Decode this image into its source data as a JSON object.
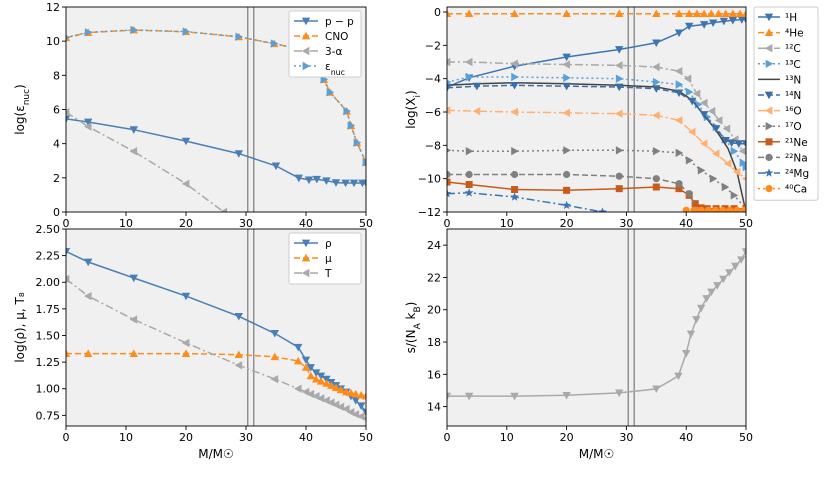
{
  "figure": {
    "x_unit_label": "M/M☉",
    "marker_colors": {
      "blue": "#4a7fb5",
      "orange": "#ff8c1a",
      "gray": "#a9a9a9",
      "lightblue": "#5aa0d8",
      "darkgray": "#444444",
      "navy": "#3a6ea5",
      "peach": "#ffb070",
      "dotgray": "#808080",
      "rust": "#c85a1a",
      "steel": "#3d74b4"
    }
  },
  "chart_data": [
    {
      "id": "p1",
      "type": "line",
      "ylabel": "log(ε_nuc)",
      "xlim": [
        0,
        50
      ],
      "ylim": [
        0,
        12
      ],
      "xticks": [
        0,
        10,
        20,
        30,
        40,
        50
      ],
      "yticks": [
        0,
        2,
        4,
        6,
        8,
        10,
        12
      ],
      "vlines": [
        30.3,
        31.3
      ],
      "grid": false,
      "legend_position": "top-right",
      "series": [
        {
          "name": "p − p",
          "color": "#4a7fb5",
          "dash": "",
          "marker": "tri-down",
          "x": [
            0,
            3.7,
            11.3,
            20,
            28.8,
            35,
            38.8,
            40.5,
            41.8,
            43.4,
            45,
            46.6,
            48,
            49.4,
            50
          ],
          "y": [
            5.45,
            5.27,
            4.82,
            4.15,
            3.42,
            2.7,
            1.99,
            1.88,
            1.92,
            1.83,
            1.72,
            1.7,
            1.7,
            1.7,
            1.7
          ]
        },
        {
          "name": "CNO",
          "color": "#ff8c1a",
          "dash": "6,3",
          "marker": "tri-up",
          "x": [
            0,
            3.7,
            11.3,
            20,
            28.8,
            34.7,
            38.8,
            43,
            44,
            46.8,
            47.5,
            48.5,
            50
          ],
          "y": [
            10.2,
            10.5,
            10.65,
            10.55,
            10.25,
            9.85,
            9.55,
            7.75,
            7.0,
            5.9,
            5.05,
            4.05,
            2.9
          ]
        },
        {
          "name": "3-α",
          "color": "#a9a9a9",
          "dash": "8,3,2,3",
          "marker": "tri-left",
          "x": [
            0,
            3.7,
            11.3,
            20,
            26.3
          ],
          "y": [
            5.85,
            5.0,
            3.55,
            1.65,
            0
          ]
        },
        {
          "name": "ε_nuc",
          "color": "#5aa0d8",
          "dash": "2,3",
          "marker": "tri-right",
          "x": [
            0,
            3.7,
            11.3,
            20,
            28.8,
            34.7,
            38.8,
            43,
            44,
            46.8,
            47.5,
            48.5,
            50
          ],
          "y": [
            10.22,
            10.52,
            10.66,
            10.56,
            10.26,
            9.86,
            9.56,
            7.76,
            7.01,
            5.91,
            5.06,
            4.06,
            2.91
          ]
        }
      ]
    },
    {
      "id": "p2",
      "type": "line",
      "ylabel": "log(X_i)",
      "xlim": [
        0,
        50
      ],
      "ylim": [
        -12,
        0.3
      ],
      "xticks": [
        0,
        10,
        20,
        30,
        40,
        50
      ],
      "yticks": [
        -12,
        -10,
        -8,
        -6,
        -4,
        -2,
        0
      ],
      "vlines": [
        30.3,
        31.3
      ],
      "grid": false,
      "legend_position": "outside-right",
      "series": [
        {
          "name": "¹H",
          "color": "#3d74b4",
          "dash": "",
          "marker": "tri-down",
          "x": [
            0,
            3.7,
            11.3,
            20,
            28.8,
            35,
            38.8,
            40.5,
            43,
            44.5,
            46.3,
            47.8,
            49.3,
            50
          ],
          "y": [
            -4.5,
            -3.95,
            -3.25,
            -2.7,
            -2.25,
            -1.85,
            -1.25,
            -0.85,
            -0.75,
            -0.65,
            -0.55,
            -0.5,
            -0.45,
            -0.45
          ]
        },
        {
          "name": "⁴He",
          "color": "#ff8c1a",
          "dash": "6,3",
          "marker": "tri-up",
          "x": [
            0,
            3.7,
            11.3,
            20,
            28.8,
            35,
            38.8,
            40.5,
            41.8,
            43,
            44.2,
            45.4,
            46.6,
            47.8,
            49,
            50
          ],
          "y": [
            -0.1,
            -0.1,
            -0.1,
            -0.1,
            -0.1,
            -0.1,
            -0.1,
            -0.1,
            -0.1,
            -0.1,
            -0.1,
            -0.1,
            -0.1,
            -0.1,
            -0.1,
            -0.1
          ]
        },
        {
          "name": "¹²C",
          "color": "#a9a9a9",
          "dash": "8,3,2,3",
          "marker": "tri-left",
          "x": [
            0,
            3.7,
            11.3,
            20,
            28.8,
            35,
            38.8,
            40.3,
            41.8,
            43,
            44.3,
            45.5,
            46.8,
            48.2,
            49.5,
            50
          ],
          "y": [
            -3.0,
            -3.0,
            -3.1,
            -3.15,
            -3.2,
            -3.3,
            -3.55,
            -4.0,
            -4.9,
            -5.45,
            -5.95,
            -6.5,
            -7.0,
            -7.65,
            -8.35,
            -8.4
          ]
        },
        {
          "name": "¹³C",
          "color": "#5aa0d8",
          "dash": "2,3",
          "marker": "tri-right",
          "x": [
            0,
            3.7,
            11.3,
            20,
            28.8,
            35,
            38.8,
            40.5,
            42,
            43.5,
            45,
            46.5,
            48,
            49.5,
            50
          ],
          "y": [
            -4.2,
            -3.9,
            -3.9,
            -3.95,
            -4.0,
            -4.2,
            -4.35,
            -4.8,
            -5.55,
            -6.3,
            -6.9,
            -7.65,
            -8.35,
            -9.05,
            -9.3
          ]
        },
        {
          "name": "¹³N",
          "color": "#444444",
          "dash": "",
          "marker": "none",
          "x": [
            0,
            5,
            11.3,
            20,
            28.8,
            35,
            38.8,
            41,
            43,
            45,
            47,
            48.5,
            50
          ],
          "y": [
            -4.4,
            -4.3,
            -4.25,
            -4.3,
            -4.4,
            -4.5,
            -4.75,
            -5.3,
            -6.2,
            -7.1,
            -8.2,
            -9.6,
            -12.0
          ]
        },
        {
          "name": "¹⁴N",
          "color": "#3a6ea5",
          "dash": "6,3",
          "marker": "tri-down",
          "x": [
            0,
            5,
            11.3,
            20,
            28.8,
            35,
            38.8,
            41,
            43,
            45,
            46.6,
            47.6,
            48.8,
            50
          ],
          "y": [
            -4.55,
            -4.45,
            -4.4,
            -4.45,
            -4.5,
            -4.6,
            -4.85,
            -5.35,
            -6.15,
            -7.0,
            -7.7,
            -7.85,
            -7.9,
            -7.9
          ]
        },
        {
          "name": "¹⁶O",
          "color": "#ffb070",
          "dash": "8,3,2,3",
          "marker": "tri-left",
          "x": [
            0,
            5,
            11.3,
            20,
            28.8,
            35,
            38.8,
            41,
            43,
            45,
            47,
            48.5,
            50
          ],
          "y": [
            -5.9,
            -5.95,
            -6.0,
            -6.05,
            -6.1,
            -6.2,
            -6.5,
            -7.2,
            -7.9,
            -8.5,
            -9.1,
            -9.6,
            -10.0
          ]
        },
        {
          "name": "¹⁷O",
          "color": "#808080",
          "dash": "2,3",
          "marker": "tri-right",
          "x": [
            0,
            3.7,
            11.3,
            20,
            28.8,
            35,
            38.8,
            40.5,
            42.5,
            44.5,
            46.5,
            48,
            50
          ],
          "y": [
            -8.3,
            -8.35,
            -8.35,
            -8.3,
            -8.3,
            -8.35,
            -8.45,
            -8.9,
            -9.5,
            -10.0,
            -10.5,
            -11.0,
            -11.8
          ]
        },
        {
          "name": "²¹Ne",
          "color": "#c85a1a",
          "dash": "",
          "marker": "square",
          "x": [
            0,
            3.7,
            11.3,
            20,
            28.8,
            35,
            38.8,
            40.5,
            41.5,
            42.5,
            43.5,
            45,
            46.5,
            48,
            50
          ],
          "y": [
            -10.2,
            -10.35,
            -10.65,
            -10.7,
            -10.6,
            -10.5,
            -10.6,
            -11.0,
            -11.5,
            -11.75,
            -11.8,
            -11.8,
            -11.8,
            -11.8,
            -11.8
          ]
        },
        {
          "name": "²²Na",
          "color": "#808080",
          "dash": "6,3",
          "marker": "circle",
          "x": [
            0,
            3.7,
            11.3,
            20,
            28.8,
            35,
            38.8,
            40.5,
            42
          ],
          "y": [
            -9.75,
            -9.75,
            -9.75,
            -9.75,
            -9.85,
            -10.0,
            -10.3,
            -10.9,
            -12.0
          ]
        },
        {
          "name": "²⁴Mg",
          "color": "#3d74b4",
          "dash": "8,3,2,3",
          "marker": "star",
          "x": [
            0,
            3.7,
            11.3,
            20,
            26
          ],
          "y": [
            -10.9,
            -10.85,
            -11.1,
            -11.6,
            -12.0
          ]
        },
        {
          "name": "⁴⁰Ca",
          "color": "#ff8c1a",
          "dash": "2,3",
          "marker": "circle",
          "x": [
            40,
            41.3,
            42.5,
            43.7,
            44.9,
            46.1,
            47.3,
            48.5,
            49.7
          ],
          "y": [
            -11.9,
            -11.9,
            -11.9,
            -11.9,
            -11.9,
            -11.9,
            -11.9,
            -11.9,
            -11.9
          ]
        }
      ]
    },
    {
      "id": "p3",
      "type": "line",
      "ylabel": "log(ρ), μ, T₈",
      "xlabel": "M/M☉",
      "xlim": [
        0,
        50
      ],
      "ylim": [
        0.65,
        2.5
      ],
      "xticks": [
        0,
        10,
        20,
        30,
        40,
        50
      ],
      "yticks": [
        0.75,
        1.0,
        1.25,
        1.5,
        1.75,
        2.0,
        2.25,
        2.5
      ],
      "ytick_labels": [
        "0.75",
        "1.00",
        "1.25",
        "1.50",
        "1.75",
        "2.00",
        "2.25",
        "2.50"
      ],
      "vlines": [
        30.3,
        31.3
      ],
      "grid": false,
      "legend_position": "top-right",
      "series": [
        {
          "name": "ρ",
          "color": "#4a7fb5",
          "dash": "",
          "marker": "tri-down",
          "x": [
            0,
            3.7,
            11.3,
            20,
            28.8,
            34.8,
            38.7,
            40,
            40.8,
            41.7,
            42.5,
            43.4,
            44.2,
            45,
            45.8,
            46.7,
            47.5,
            48.3,
            49.2,
            50
          ],
          "y": [
            2.29,
            2.19,
            2.04,
            1.87,
            1.68,
            1.52,
            1.39,
            1.27,
            1.2,
            1.15,
            1.12,
            1.09,
            1.06,
            1.03,
            1.0,
            0.97,
            0.93,
            0.89,
            0.84,
            0.78
          ]
        },
        {
          "name": "μ",
          "color": "#ff8c1a",
          "dash": "6,3",
          "marker": "tri-up",
          "x": [
            0,
            3.7,
            11.3,
            20,
            28.8,
            34.8,
            38.7,
            40,
            40.8,
            41.7,
            42.5,
            43.4,
            44.2,
            45,
            45.8,
            46.7,
            47.5,
            48.3,
            49.2,
            50
          ],
          "y": [
            1.33,
            1.33,
            1.33,
            1.33,
            1.32,
            1.3,
            1.26,
            1.2,
            1.12,
            1.09,
            1.07,
            1.05,
            1.03,
            1.01,
            0.99,
            0.97,
            0.96,
            0.95,
            0.94,
            0.93
          ]
        },
        {
          "name": "T",
          "color": "#a9a9a9",
          "dash": "8,3,2,3",
          "marker": "tri-left",
          "x": [
            0,
            3.7,
            11.3,
            20,
            28.8,
            34.8,
            38.7,
            40,
            40.8,
            41.7,
            42.5,
            43.4,
            44.2,
            45,
            45.8,
            46.7,
            47.5,
            48.3,
            49.2,
            50
          ],
          "y": [
            2.03,
            1.87,
            1.65,
            1.43,
            1.22,
            1.09,
            1.0,
            0.97,
            0.95,
            0.93,
            0.91,
            0.89,
            0.87,
            0.85,
            0.83,
            0.81,
            0.78,
            0.76,
            0.74,
            0.72
          ]
        }
      ]
    },
    {
      "id": "p4",
      "type": "line",
      "ylabel": "s/(N_A k_B)",
      "xlabel": "M/M☉",
      "xlim": [
        0,
        50
      ],
      "ylim": [
        12.8,
        25
      ],
      "xticks": [
        0,
        10,
        20,
        30,
        40,
        50
      ],
      "yticks": [
        14,
        16,
        18,
        20,
        22,
        24
      ],
      "vlines": [
        30.3,
        31.3
      ],
      "grid": false,
      "legend_position": "none",
      "series": [
        {
          "name": "",
          "color": "#a9a9a9",
          "dash": "",
          "marker": "tri-down",
          "x": [
            0,
            3.7,
            11.3,
            20,
            28.8,
            35,
            38.7,
            40,
            40.8,
            41.7,
            42.5,
            43.4,
            44.2,
            45.2,
            46.2,
            47.2,
            48.2,
            49.2,
            50
          ],
          "y": [
            14.65,
            14.65,
            14.65,
            14.7,
            14.85,
            15.1,
            15.9,
            17.3,
            18.5,
            19.4,
            20.1,
            20.7,
            21.1,
            21.5,
            21.9,
            22.3,
            22.7,
            23.1,
            23.6
          ]
        }
      ]
    }
  ]
}
